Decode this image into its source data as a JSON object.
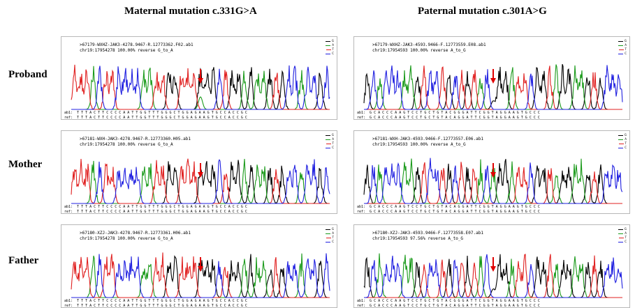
{
  "columns": [
    {
      "title": "Maternal mutation c.331G>A"
    },
    {
      "title": "Paternal mutation c.301A>G"
    }
  ],
  "rows": [
    {
      "label": "Proband"
    },
    {
      "label": "Mother"
    },
    {
      "label": "Father"
    }
  ],
  "legend": [
    {
      "base": "G",
      "color": "#000000"
    },
    {
      "base": "A",
      "color": "#1a9a1a"
    },
    {
      "base": "T",
      "color": "#e02020"
    },
    {
      "base": "C",
      "color": "#2020e0"
    }
  ],
  "arrow_color": "#e00000",
  "panels": [
    {
      "id": "proband-maternal",
      "line1": ">67179-WXHZ-JAK3-4278.9467-R.12773362.F02.ab1",
      "line2": "chr19:17954278 100.00% reverse G_to_A",
      "ab1_tag": "ab1:",
      "ref_tag": "ref:",
      "ab1_seq": "T T T A C T T C C C C A A T T G G T T T G G G C T G G A G A A G T G C C A C C G C",
      "ref_seq": "T T T A C T T C C C C A A T T G G T T T G G G C T G G A G A A G T G C C A C C G C",
      "variant_index": 20
    },
    {
      "id": "proband-paternal",
      "line1": ">67179-WXHZ-JAK3-4593.9466-F.12773559.E08.ab1",
      "line2": "chr19:17954593 100.00% reverse A_to_G",
      "ab1_tag": "ab1:",
      "ref_tag": "ref:",
      "ab1_seq": "G C A C C C A A G T C C T G C T G T A C G G G A T T C G G T A G G A A G T G C C C",
      "ref_seq": "G C A C C C A A G T C C T G C T G T A C A G G A T T C G G T A G G A A G T G C C C",
      "variant_index": 20
    },
    {
      "id": "mother-maternal",
      "line1": ">67181-WXH-JAK3-4278.9467-R.12773360.H05.ab1",
      "line2": "chr19:17954278 100.00% reverse G_to_A",
      "ab1_tag": "ab1:",
      "ref_tag": "ref:",
      "ab1_seq": "T T T A C T T C C C C A A T T G G T T T G G G C T G G A G A A G T G C C A C C G C",
      "ref_seq": "T T T A C T T C C C C A A T T G G T T T G G G C T G G A G A A G T G C C A C C G C",
      "variant_index": 20
    },
    {
      "id": "mother-paternal",
      "line1": ">67181-WXH-JAK3-4593.9466-F.12773557.E06.ab1",
      "line2": "chr19:17954593 100.00% reverse A_to_G",
      "ab1_tag": "ab1:",
      "ref_tag": "ref:",
      "ab1_seq": "G C A C C C A A G T C C T G C T G T A C A G G A T T C G G T A G G A A G T G C C C",
      "ref_seq": "G C A C C C A A G T C C T G C T G T A C A G G A T T C G G T A G G A A G T G C C C",
      "variant_index": 20
    },
    {
      "id": "father-maternal",
      "line1": ">67180-XZJ-JAK3-4278.9467-R.12773361.H06.ab1",
      "line2": "chr19:17954278 100.00% reverse G_to_A",
      "ab1_tag": "ab1:",
      "ref_tag": "ref:",
      "ab1_seq": "T T T A C T T C C C C A A T T G G T T T G G G C T G G A G A A G T G C C A C C G C",
      "ref_seq": "T T T A C T T C C C C A A T T G G T T T G G G C T G G A G A A G T G C C A C C G C",
      "variant_index": 20
    },
    {
      "id": "father-paternal",
      "line1": ">67180-XZJ-JAK3-4593.9466-F.12773558.E07.ab1",
      "line2": "chr19:17954593 97.56% reverse A_to_G",
      "ab1_tag": "ab1:",
      "ref_tag": "ref:",
      "ab1_seq": "G C A C C C A A G T C C T G C T G T A C G G G A T T C G G T A G G A A G T G C C C",
      "ref_seq": "G C A C C C A A G T C C T G C T G T A C A G G A T T C G G T A G G A A G T G C C C",
      "variant_index": 20
    }
  ]
}
